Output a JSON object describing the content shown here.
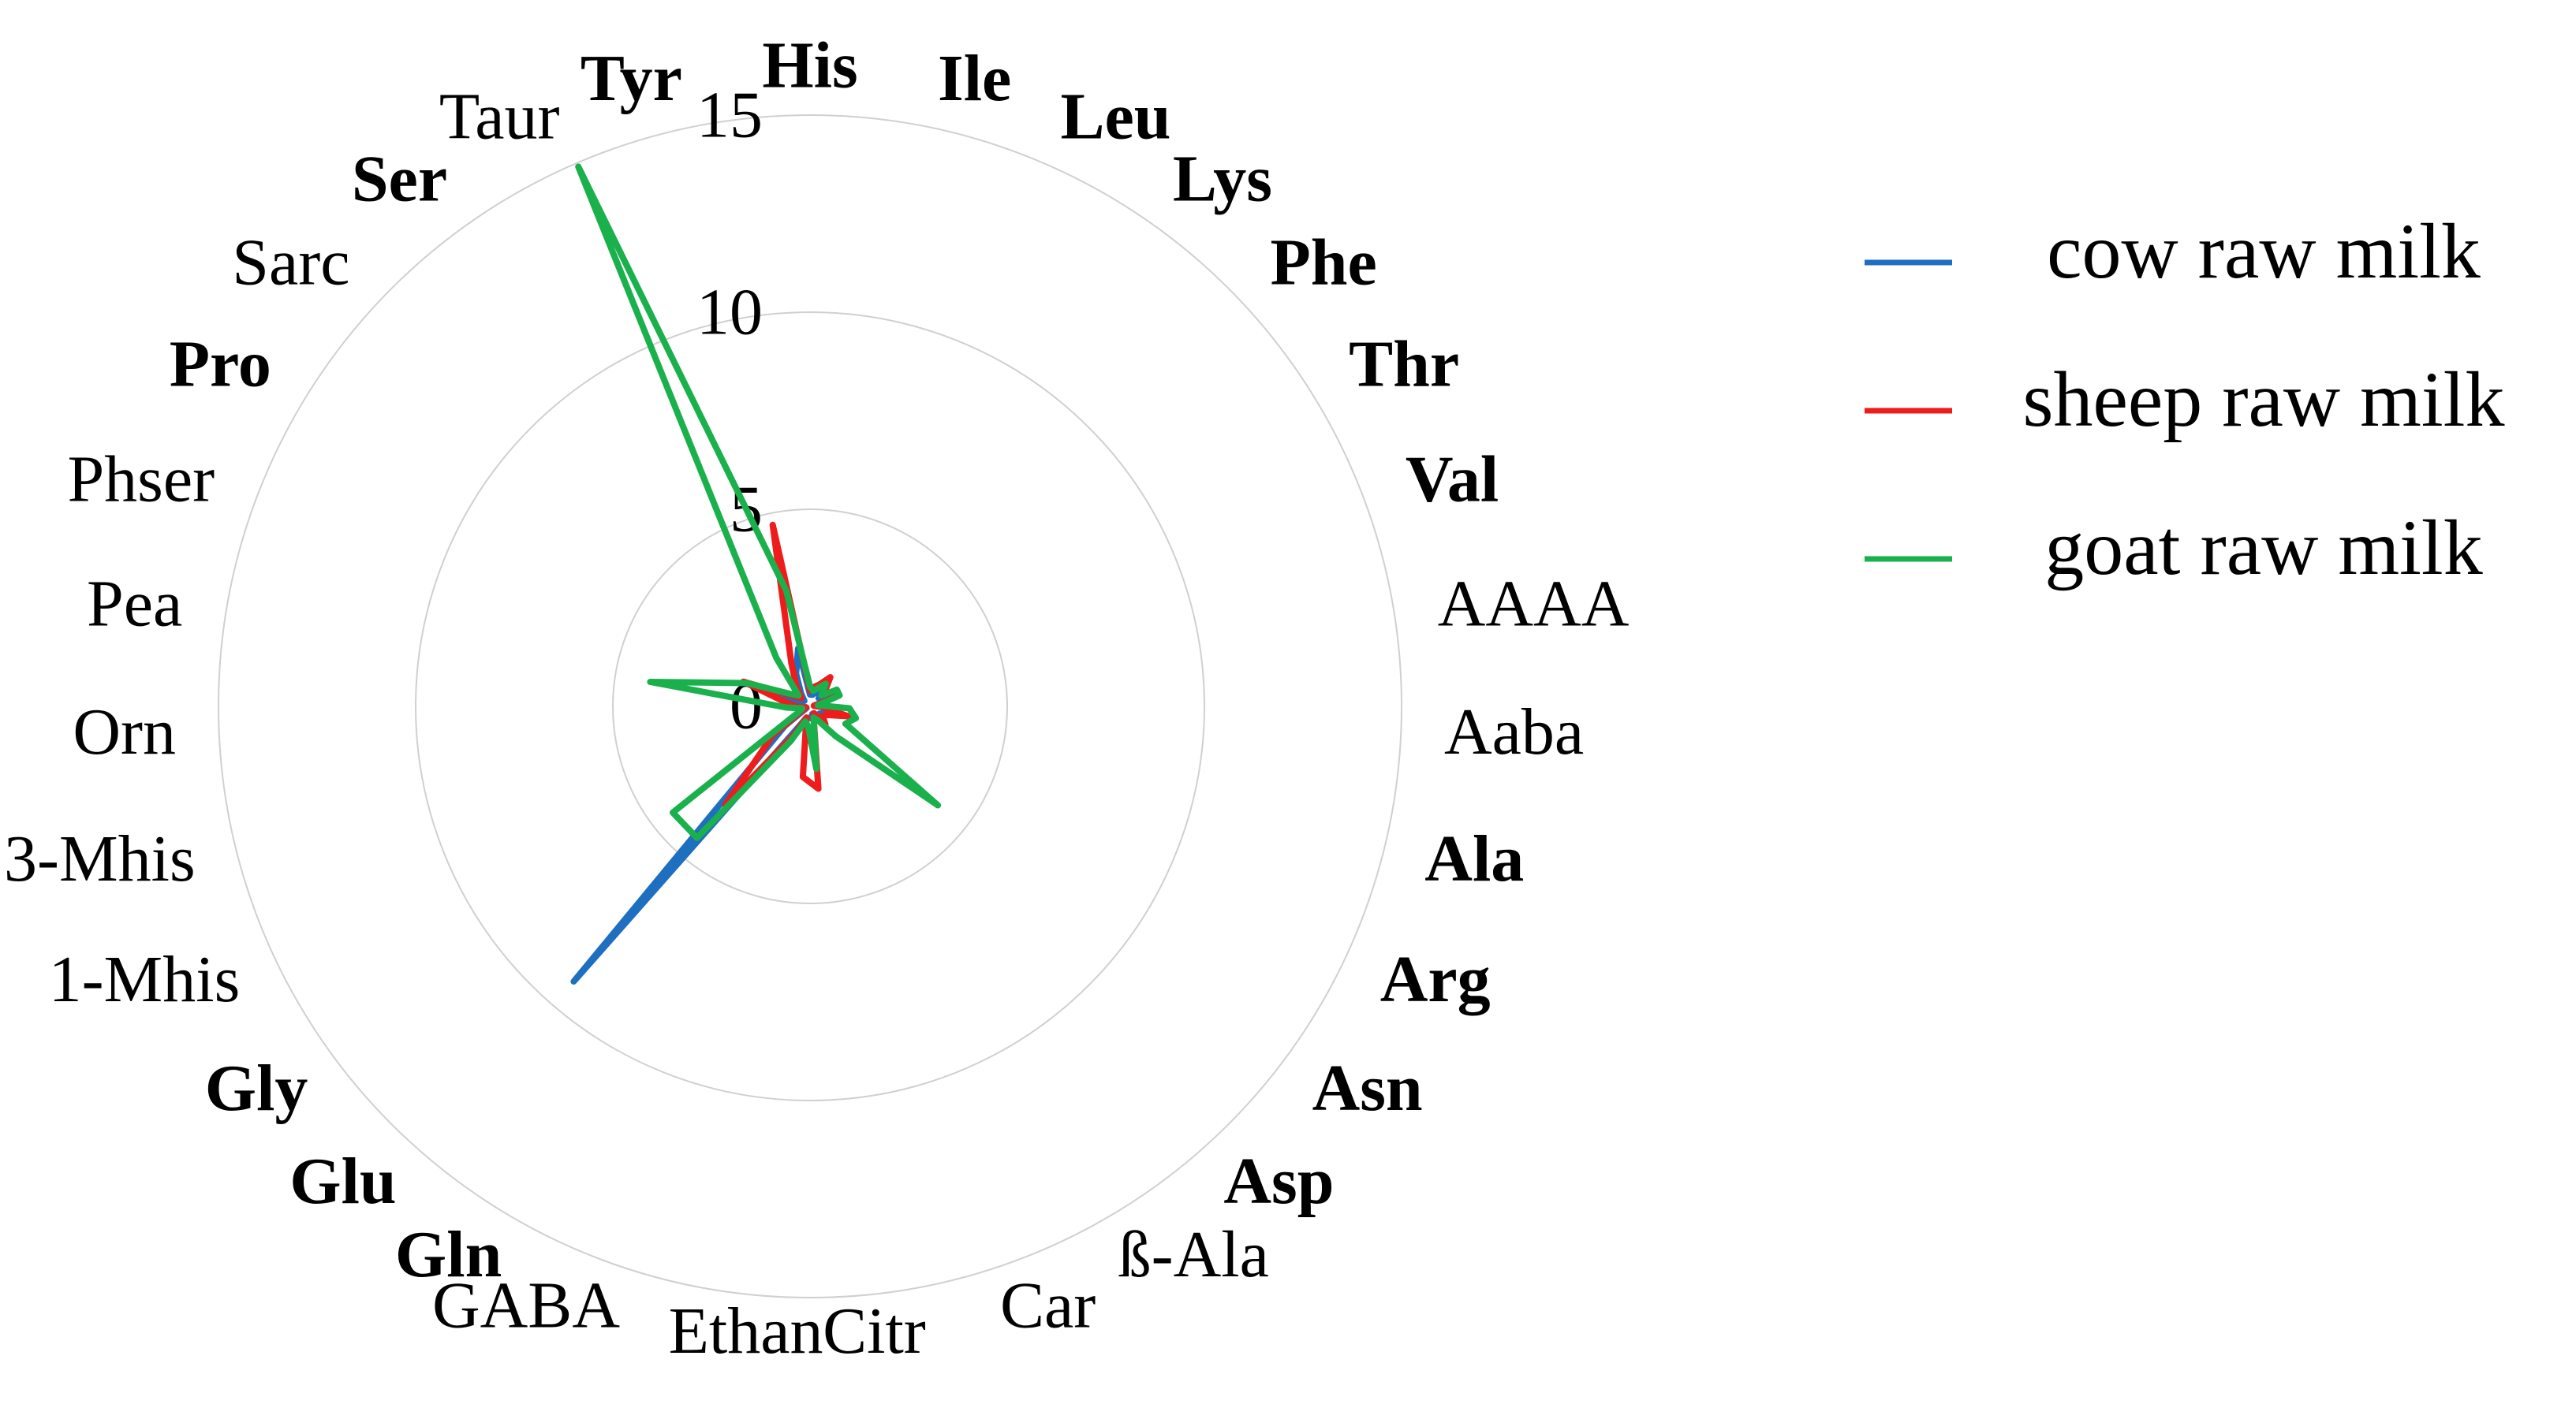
{
  "chart_data": {
    "type": "radar",
    "categories": [
      "His",
      "Ile",
      "Leu",
      "Lys",
      "Phe",
      "Thr",
      "Val",
      "AAAA",
      "Aaba",
      "Ala",
      "Arg",
      "Asn",
      "Asp",
      "ß-Ala",
      "Car",
      "Citr",
      "Ethan",
      "GABA",
      "Gln",
      "Glu",
      "Gly",
      "1-Mhis",
      "3-Mhis",
      "Orn",
      "Pea",
      "Phser",
      "Pro",
      "Sarc",
      "Ser",
      "Taur",
      "Tyr"
    ],
    "category_bold": [
      true,
      true,
      true,
      true,
      true,
      true,
      true,
      false,
      false,
      true,
      true,
      true,
      true,
      false,
      false,
      false,
      false,
      false,
      true,
      true,
      true,
      false,
      false,
      false,
      false,
      false,
      true,
      false,
      true,
      false,
      true
    ],
    "series": [
      {
        "name": "cow raw milk",
        "color": "#1f6fc0",
        "values": [
          0.3,
          0.3,
          0.4,
          0.6,
          0.3,
          0.4,
          0.5,
          0.1,
          0.3,
          0.8,
          0.4,
          0.3,
          0.5,
          0.2,
          0.2,
          0.3,
          0.3,
          0.3,
          0.6,
          9.2,
          0.8,
          0.1,
          0.1,
          0.2,
          0.4,
          1.7,
          0.3,
          0.2,
          0.4,
          0.9,
          1.5
        ]
      },
      {
        "name": "sheep raw milk",
        "color": "#ee1c1c",
        "values": [
          0.4,
          0.5,
          0.6,
          0.9,
          0.5,
          0.6,
          0.7,
          0.1,
          0.3,
          1.0,
          0.5,
          0.4,
          0.6,
          0.2,
          0.3,
          2.1,
          1.8,
          0.3,
          0.8,
          3.3,
          1.2,
          0.2,
          0.1,
          0.3,
          0.6,
          1.8,
          0.5,
          0.3,
          0.6,
          1.2,
          4.7
        ]
      },
      {
        "name": "goat raw milk",
        "color": "#1ab04c",
        "values": [
          0.5,
          0.4,
          0.5,
          0.7,
          0.4,
          0.8,
          0.8,
          0.2,
          1.0,
          1.2,
          1.0,
          4.1,
          1.0,
          0.4,
          0.3,
          1.6,
          0.5,
          0.4,
          1.0,
          4.4,
          4.4,
          0.3,
          0.2,
          0.6,
          4.1,
          1.7,
          0.6,
          0.4,
          1.5,
          14.9,
          3.0
        ]
      }
    ],
    "rlim": [
      0,
      15
    ],
    "rticks": [
      0,
      5,
      10,
      15
    ],
    "grid": true
  }
}
